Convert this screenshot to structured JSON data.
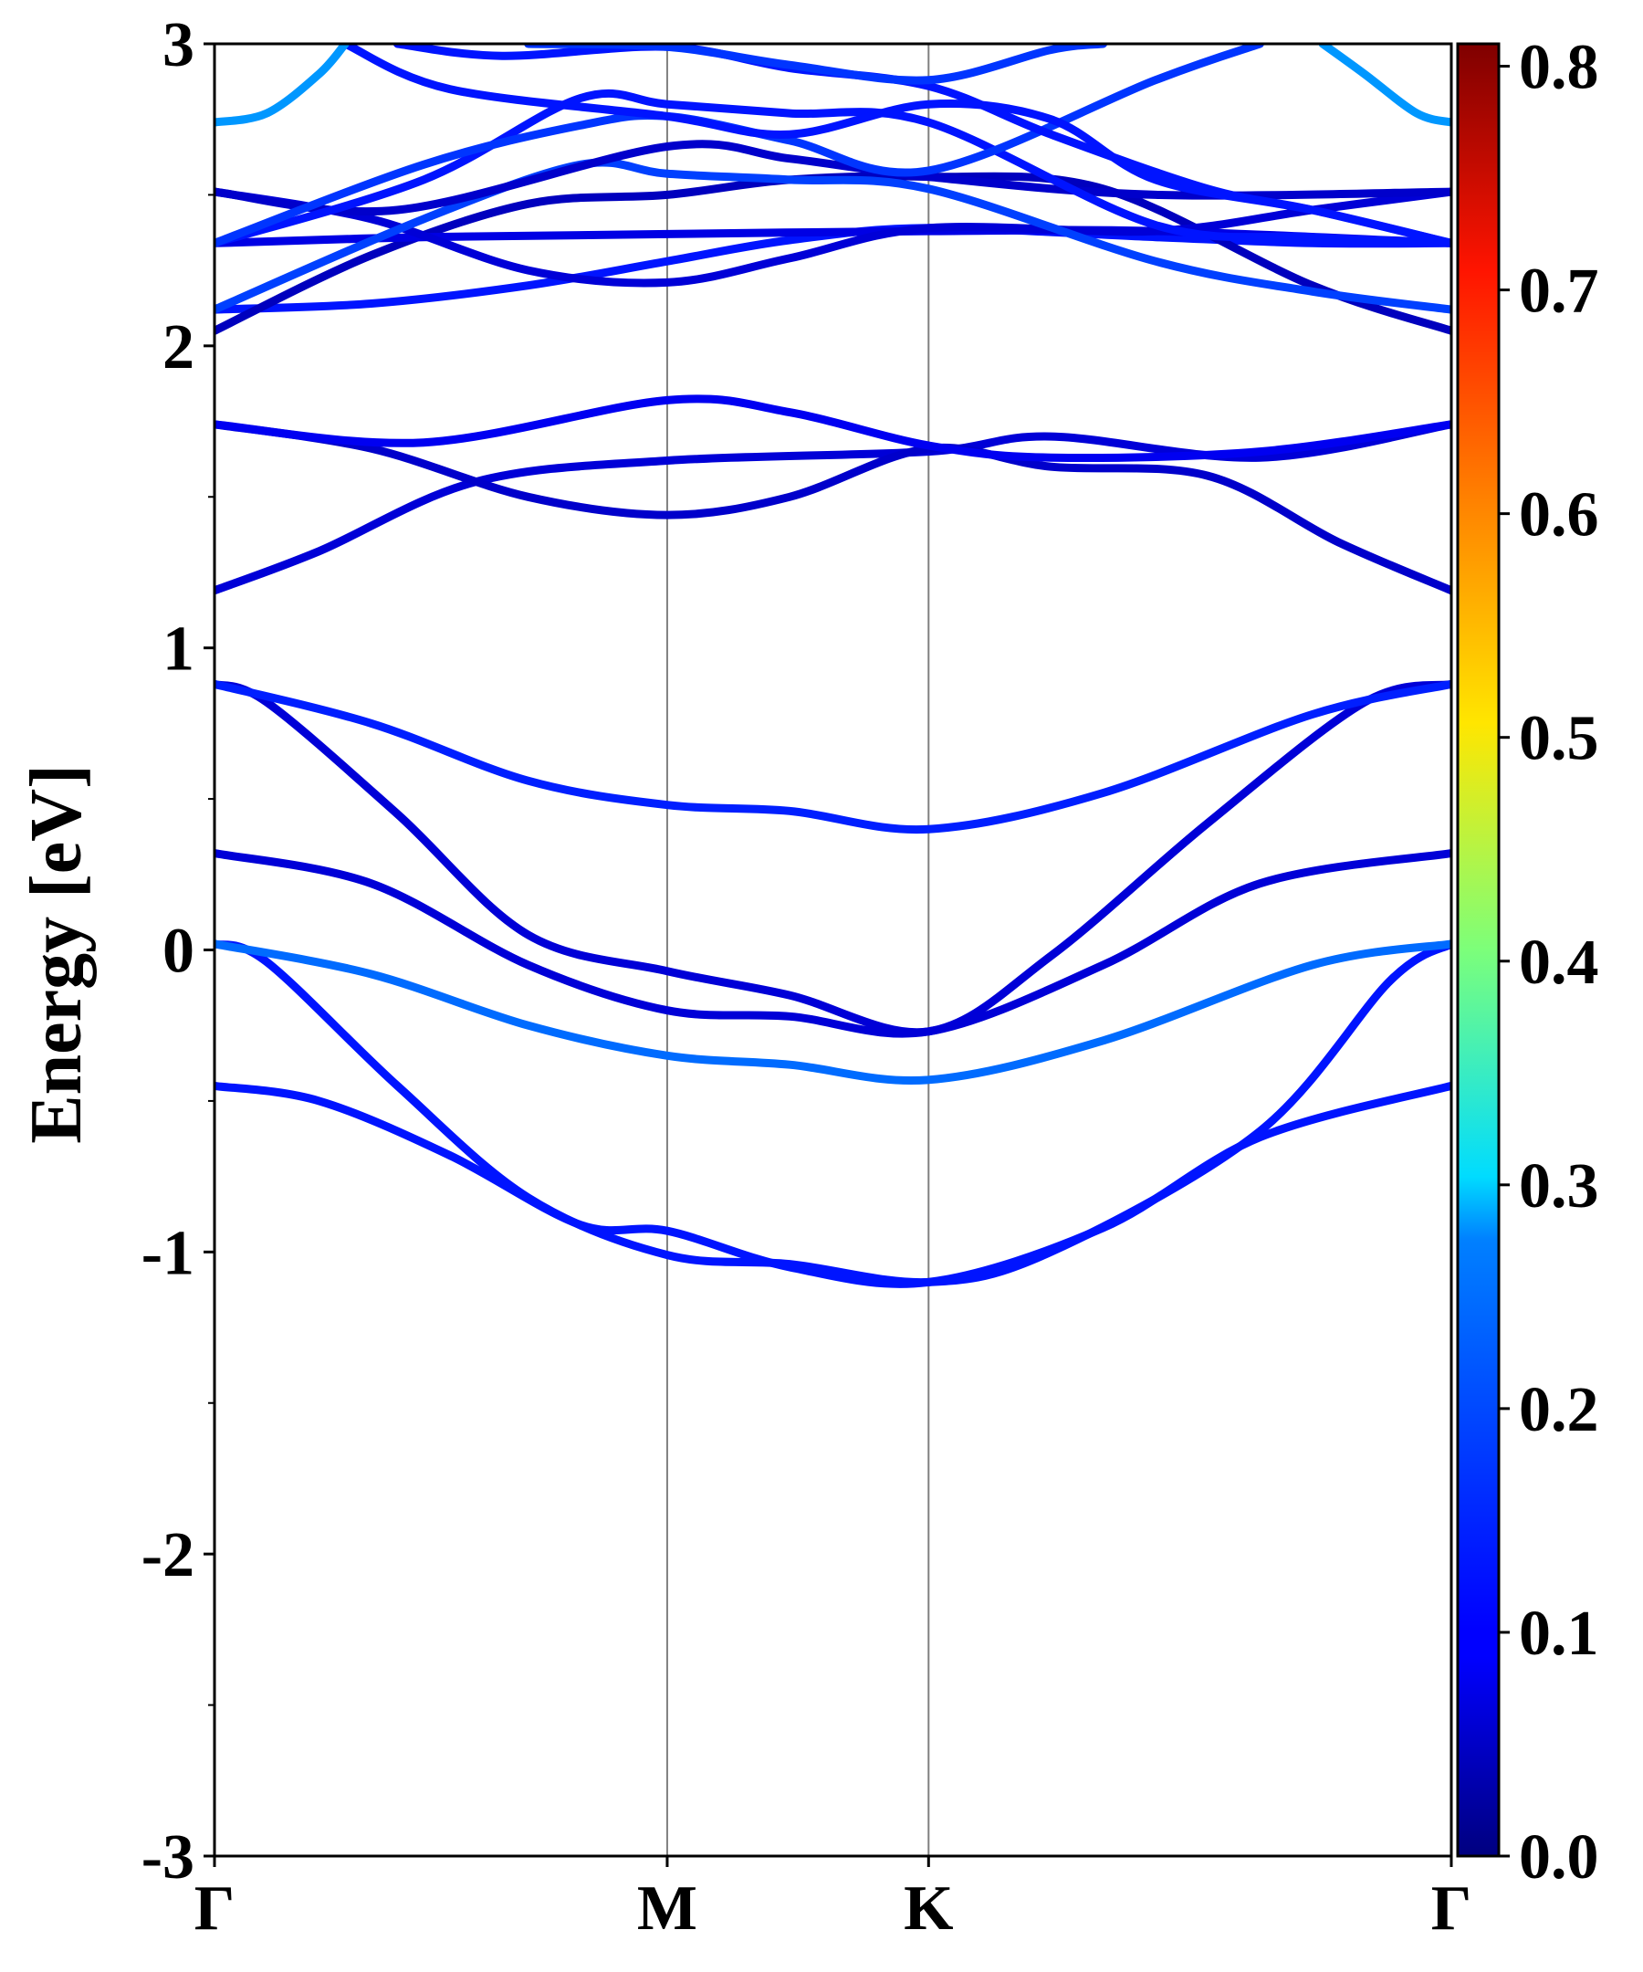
{
  "chart_data": {
    "type": "line",
    "title": "",
    "ylabel": "Energy [eV]",
    "ylim": [
      -3,
      3
    ],
    "y_major_ticks": [
      -3,
      -2,
      -1,
      0,
      1,
      2,
      3
    ],
    "y_tick_labels": [
      "-3",
      "-2",
      "-1",
      "0",
      "1",
      "2",
      "3"
    ],
    "y_minor_ticks": [
      -2.5,
      -1.5,
      -0.5,
      0.5,
      1.5,
      2.5
    ],
    "x_path": {
      "labels": [
        "Γ",
        "M",
        "K",
        "Γ"
      ],
      "positions": [
        0,
        0.866,
        1.366,
        2.366
      ]
    },
    "colorbar": {
      "range": [
        0.0,
        0.81
      ],
      "ticks": [
        0.0,
        0.1,
        0.2,
        0.3,
        0.4,
        0.5,
        0.6,
        0.7,
        0.8
      ],
      "tick_labels": [
        "0.0",
        "0.1",
        "0.2",
        "0.3",
        "0.4",
        "0.5",
        "0.6",
        "0.7",
        "0.8"
      ],
      "colormap": "jet"
    },
    "series": [
      {
        "values": [
          [
            0,
            -0.45
          ],
          [
            0.2,
            -0.5
          ],
          [
            0.45,
            -0.68
          ],
          [
            0.7,
            -0.91
          ],
          [
            0.866,
            -0.93
          ],
          [
            1.1,
            -1.05
          ],
          [
            1.366,
            -1.1
          ],
          [
            1.7,
            -0.92
          ],
          [
            2.0,
            -0.62
          ],
          [
            2.366,
            -0.45
          ]
        ],
        "weight": 0.12
      },
      {
        "values": [
          [
            0,
            0.02
          ],
          [
            0.1,
            -0.04
          ],
          [
            0.35,
            -0.45
          ],
          [
            0.6,
            -0.82
          ],
          [
            0.866,
            -1.01
          ],
          [
            1.1,
            -1.04
          ],
          [
            1.366,
            -1.1
          ],
          [
            1.6,
            -1.0
          ],
          [
            2.0,
            -0.6
          ],
          [
            2.25,
            -0.1
          ],
          [
            2.366,
            0.02
          ]
        ],
        "weight": 0.12
      },
      {
        "values": [
          [
            0,
            0.02
          ],
          [
            0.3,
            -0.08
          ],
          [
            0.6,
            -0.25
          ],
          [
            0.866,
            -0.35
          ],
          [
            1.1,
            -0.38
          ],
          [
            1.366,
            -0.43
          ],
          [
            1.7,
            -0.3
          ],
          [
            2.1,
            -0.05
          ],
          [
            2.366,
            0.02
          ]
        ],
        "weight": 0.2
      },
      {
        "values": [
          [
            0,
            0.32
          ],
          [
            0.3,
            0.22
          ],
          [
            0.6,
            -0.05
          ],
          [
            0.866,
            -0.2
          ],
          [
            1.1,
            -0.22
          ],
          [
            1.366,
            -0.27
          ],
          [
            1.7,
            -0.05
          ],
          [
            2.0,
            0.22
          ],
          [
            2.366,
            0.32
          ]
        ],
        "weight": 0.07
      },
      {
        "values": [
          [
            0,
            0.88
          ],
          [
            0.1,
            0.82
          ],
          [
            0.35,
            0.45
          ],
          [
            0.6,
            0.05
          ],
          [
            0.866,
            -0.07
          ],
          [
            1.1,
            -0.15
          ],
          [
            1.366,
            -0.27
          ],
          [
            1.6,
            -0.02
          ],
          [
            1.9,
            0.42
          ],
          [
            2.2,
            0.82
          ],
          [
            2.366,
            0.88
          ]
        ],
        "weight": 0.07
      },
      {
        "values": [
          [
            0,
            0.88
          ],
          [
            0.3,
            0.75
          ],
          [
            0.6,
            0.56
          ],
          [
            0.866,
            0.48
          ],
          [
            1.1,
            0.46
          ],
          [
            1.366,
            0.4
          ],
          [
            1.7,
            0.52
          ],
          [
            2.1,
            0.78
          ],
          [
            2.366,
            0.88
          ]
        ],
        "weight": 0.13
      },
      {
        "values": [
          [
            0,
            1.19
          ],
          [
            0.2,
            1.32
          ],
          [
            0.5,
            1.55
          ],
          [
            0.866,
            1.62
          ],
          [
            1.366,
            1.65
          ],
          [
            1.6,
            1.7
          ],
          [
            2.0,
            1.63
          ],
          [
            2.366,
            1.74
          ]
        ],
        "weight": 0.07
      },
      {
        "values": [
          [
            0,
            1.74
          ],
          [
            0.3,
            1.66
          ],
          [
            0.6,
            1.5
          ],
          [
            0.866,
            1.44
          ],
          [
            1.1,
            1.5
          ],
          [
            1.366,
            1.66
          ],
          [
            1.6,
            1.6
          ],
          [
            1.9,
            1.57
          ],
          [
            2.15,
            1.35
          ],
          [
            2.366,
            1.19
          ]
        ],
        "weight": 0.06
      },
      {
        "values": [
          [
            0,
            1.74
          ],
          [
            0.4,
            1.68
          ],
          [
            0.866,
            1.82
          ],
          [
            1.1,
            1.78
          ],
          [
            1.366,
            1.67
          ],
          [
            1.6,
            1.63
          ],
          [
            2.0,
            1.65
          ],
          [
            2.366,
            1.74
          ]
        ],
        "weight": 0.09
      },
      {
        "values": [
          [
            0,
            2.12
          ],
          [
            0.3,
            2.14
          ],
          [
            0.6,
            2.2
          ],
          [
            0.866,
            2.28
          ],
          [
            1.1,
            2.35
          ],
          [
            1.366,
            2.39
          ],
          [
            1.8,
            2.36
          ],
          [
            2.1,
            2.34
          ],
          [
            2.366,
            2.34
          ]
        ],
        "weight": 0.12
      },
      {
        "values": [
          [
            0,
            2.05
          ],
          [
            0.3,
            2.3
          ],
          [
            0.6,
            2.47
          ],
          [
            0.866,
            2.5
          ],
          [
            1.1,
            2.55
          ],
          [
            1.366,
            2.56
          ],
          [
            1.7,
            2.52
          ],
          [
            2.1,
            2.2
          ],
          [
            2.366,
            2.05
          ]
        ],
        "weight": 0.05
      },
      {
        "values": [
          [
            0,
            2.34
          ],
          [
            0.4,
            2.36
          ],
          [
            0.866,
            2.37
          ],
          [
            1.366,
            2.38
          ],
          [
            1.8,
            2.38
          ],
          [
            2.366,
            2.34
          ]
        ],
        "weight": 0.08
      },
      {
        "values": [
          [
            0,
            2.51
          ],
          [
            0.3,
            2.42
          ],
          [
            0.6,
            2.25
          ],
          [
            0.866,
            2.21
          ],
          [
            1.1,
            2.29
          ],
          [
            1.366,
            2.39
          ],
          [
            1.8,
            2.38
          ],
          [
            2.1,
            2.45
          ],
          [
            2.366,
            2.51
          ]
        ],
        "weight": 0.07
      },
      {
        "values": [
          [
            0,
            2.12
          ],
          [
            0.4,
            2.42
          ],
          [
            0.7,
            2.6
          ],
          [
            0.866,
            2.57
          ],
          [
            1.1,
            2.55
          ],
          [
            1.366,
            2.52
          ],
          [
            1.8,
            2.28
          ],
          [
            2.1,
            2.18
          ],
          [
            2.366,
            2.12
          ]
        ],
        "weight": 0.16
      },
      {
        "values": [
          [
            0,
            2.51
          ],
          [
            0.35,
            2.45
          ],
          [
            0.866,
            2.66
          ],
          [
            1.1,
            2.62
          ],
          [
            1.366,
            2.56
          ],
          [
            1.8,
            2.5
          ],
          [
            2.366,
            2.51
          ]
        ],
        "weight": 0.06
      },
      {
        "values": [
          [
            0,
            2.34
          ],
          [
            0.4,
            2.55
          ],
          [
            0.7,
            2.82
          ],
          [
            0.866,
            2.8
          ],
          [
            1.1,
            2.77
          ],
          [
            1.366,
            2.74
          ],
          [
            1.8,
            2.4
          ],
          [
            2.1,
            2.36
          ],
          [
            2.366,
            2.34
          ]
        ],
        "weight": 0.12
      },
      {
        "values": [
          [
            0,
            2.34
          ],
          [
            0.4,
            2.6
          ],
          [
            0.7,
            2.73
          ],
          [
            0.866,
            2.76
          ],
          [
            1.1,
            2.68
          ],
          [
            1.366,
            2.58
          ],
          [
            1.8,
            2.88
          ],
          [
            2.0,
            3.0
          ]
        ],
        "weight": 0.15
      },
      {
        "values": [
          [
            0.25,
            3.0
          ],
          [
            0.45,
            2.85
          ],
          [
            0.866,
            2.76
          ],
          [
            1.1,
            2.7
          ],
          [
            1.366,
            2.8
          ],
          [
            1.6,
            2.75
          ],
          [
            1.8,
            2.55
          ],
          [
            2.1,
            2.45
          ],
          [
            2.366,
            2.34
          ]
        ],
        "weight": 0.12
      },
      {
        "values": [
          [
            0.35,
            3.0
          ],
          [
            0.55,
            2.96
          ],
          [
            0.866,
            2.99
          ],
          [
            1.1,
            2.92
          ],
          [
            1.366,
            2.86
          ],
          [
            1.6,
            2.7
          ],
          [
            1.9,
            2.52
          ],
          [
            2.1,
            2.45
          ],
          [
            2.366,
            2.34
          ]
        ],
        "weight": 0.12
      },
      {
        "values": [
          [
            0.6,
            3.0
          ],
          [
            0.866,
            2.99
          ],
          [
            1.1,
            2.93
          ],
          [
            1.366,
            2.88
          ],
          [
            1.6,
            2.98
          ],
          [
            1.7,
            3.0
          ]
        ],
        "weight": 0.15
      },
      {
        "values": [
          [
            0,
            2.74
          ],
          [
            0.1,
            2.77
          ],
          [
            0.2,
            2.9
          ],
          [
            0.25,
            3.0
          ]
        ],
        "weight": 0.24
      },
      {
        "values": [
          [
            2.12,
            3.0
          ],
          [
            2.2,
            2.9
          ],
          [
            2.3,
            2.77
          ],
          [
            2.366,
            2.74
          ]
        ],
        "weight": 0.24
      }
    ]
  }
}
